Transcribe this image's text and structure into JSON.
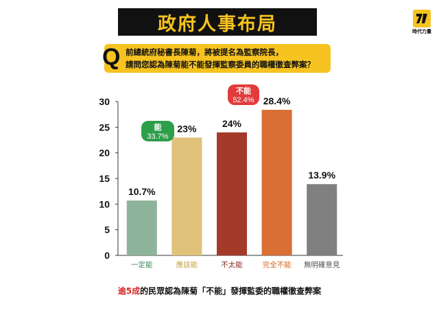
{
  "header": {
    "title": "政府人事布局",
    "logo_text": "時代力量",
    "brand_color": "#f7c321"
  },
  "question": {
    "marker": "Q",
    "line1": "前總統府秘書長陳菊，將被提名為監察院長，",
    "line2": "請問您認為陳菊能不能發揮監察委員的職權徹查弊案？"
  },
  "chart_data": {
    "type": "bar",
    "categories": [
      "一定能",
      "應該能",
      "不太能",
      "完全不能",
      "無明確意見"
    ],
    "values": [
      10.7,
      23,
      24,
      28.4,
      13.9
    ],
    "value_labels": [
      "10.7%",
      "23%",
      "24%",
      "28.4%",
      "13.9%"
    ],
    "colors": [
      "#8db39a",
      "#e0c27a",
      "#a33a2a",
      "#d96f34",
      "#808080"
    ],
    "ylim": [
      0,
      30
    ],
    "yticks": [
      0,
      5,
      10,
      15,
      20,
      25,
      30
    ],
    "grid": false,
    "annotations": [
      {
        "label": "能",
        "value": "33.7%",
        "color": "#2e9e4b"
      },
      {
        "label": "不能",
        "value": "52.4%",
        "color": "#e23b3b"
      }
    ],
    "label_colors": [
      "#3a8a5a",
      "#c8a040",
      "#8a2a20",
      "#d2691e",
      "#555555"
    ]
  },
  "footnote": {
    "highlight": "逾5成",
    "text": "的民眾認為陳菊「不能」發揮監委的職權徹查弊案"
  }
}
